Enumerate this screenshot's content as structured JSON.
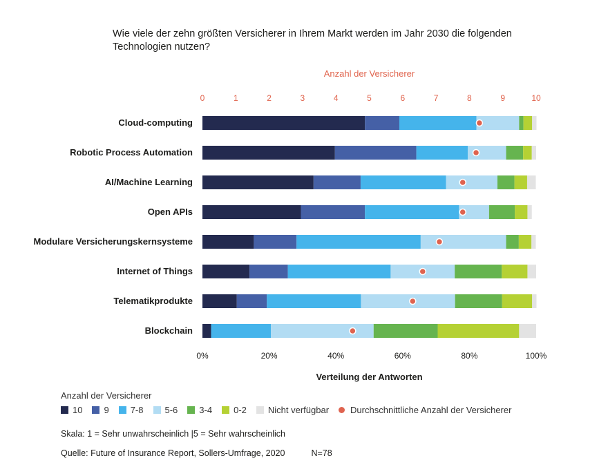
{
  "title_line1": "Wie viele der zehn größten Versicherer in Ihrem Markt werden im Jahr 2030 die folgenden",
  "title_line2": "Technologien nutzen?",
  "top_axis_label": "Anzahl der Versicherer",
  "bottom_axis_label": "Verteilung der Antworten",
  "legend_title": "Anzahl der Versicherer",
  "legend": [
    {
      "label": "10",
      "color": "#232a4f"
    },
    {
      "label": "9",
      "color": "#4560a6"
    },
    {
      "label": "7-8",
      "color": "#45b4eb"
    },
    {
      "label": "5-6",
      "color": "#b2dcf3"
    },
    {
      "label": "3-4",
      "color": "#66b44f"
    },
    {
      "label": "0-2",
      "color": "#b5d134"
    },
    {
      "label": "Nicht verfügbar",
      "color": "#e3e3e3"
    },
    {
      "label": "Durchschnittliche Anzahl der Versicherer",
      "color": "#df634f"
    }
  ],
  "scale_text": "Skala: 1 = Sehr unwahrscheinlich  |5 = Sehr wahrscheinlich",
  "source_text": "Quelle: Future of Insurance Report, Sollers-Umfrage, 2020",
  "n_text": "N=78",
  "chart_data": {
    "type": "bar",
    "orientation": "horizontal",
    "stacked": true,
    "title": "Wie viele der zehn größten Versicherer in Ihrem Markt werden im Jahr 2030 die folgenden Technologien nutzen?",
    "xlabel": "Verteilung der Antworten",
    "x2label": "Anzahl der Versicherer",
    "xlim": [
      0,
      100
    ],
    "x2lim": [
      0,
      10
    ],
    "x_ticks": [
      "0%",
      "20%",
      "40%",
      "60%",
      "80%",
      "100%"
    ],
    "x2_ticks": [
      "0",
      "1",
      "2",
      "3",
      "4",
      "5",
      "6",
      "7",
      "8",
      "9",
      "10"
    ],
    "categories": [
      "Cloud-computing",
      "Robotic Process Automation",
      "AI/Machine Learning",
      "Open APIs",
      "Modulare Versicherungskernsysteme",
      "Internet of Things",
      "Telematikprodukte",
      "Blockchain"
    ],
    "series": [
      {
        "name": "10",
        "color": "#232a4f",
        "values": [
          48.7,
          39.7,
          33.3,
          29.5,
          15.4,
          14.1,
          10.3,
          2.6
        ]
      },
      {
        "name": "9",
        "color": "#4560a6",
        "values": [
          10.3,
          24.4,
          14.1,
          19.2,
          12.8,
          11.5,
          9.0,
          0
        ]
      },
      {
        "name": "7-8",
        "color": "#45b4eb",
        "values": [
          23.1,
          15.4,
          25.6,
          28.2,
          37.2,
          30.8,
          28.2,
          17.9
        ]
      },
      {
        "name": "5-6",
        "color": "#b2dcf3",
        "values": [
          12.8,
          11.5,
          15.4,
          9.0,
          25.6,
          19.2,
          28.2,
          30.8
        ]
      },
      {
        "name": "3-4",
        "color": "#66b44f",
        "values": [
          1.3,
          5.1,
          5.1,
          7.7,
          3.8,
          14.1,
          14.1,
          19.2
        ]
      },
      {
        "name": "0-2",
        "color": "#b5d134",
        "values": [
          2.6,
          2.6,
          3.8,
          3.8,
          3.8,
          7.7,
          9.0,
          24.4
        ]
      },
      {
        "name": "Nicht verfügbar",
        "color": "#e3e3e3",
        "values": [
          1.3,
          1.3,
          2.6,
          1.3,
          1.3,
          2.6,
          1.3,
          5.1
        ]
      }
    ],
    "averages": {
      "name": "Durchschnittliche Anzahl der Versicherer",
      "color": "#df634f",
      "values": [
        8.3,
        8.2,
        7.8,
        7.8,
        7.1,
        6.6,
        6.3,
        4.5
      ]
    },
    "grid": false
  }
}
